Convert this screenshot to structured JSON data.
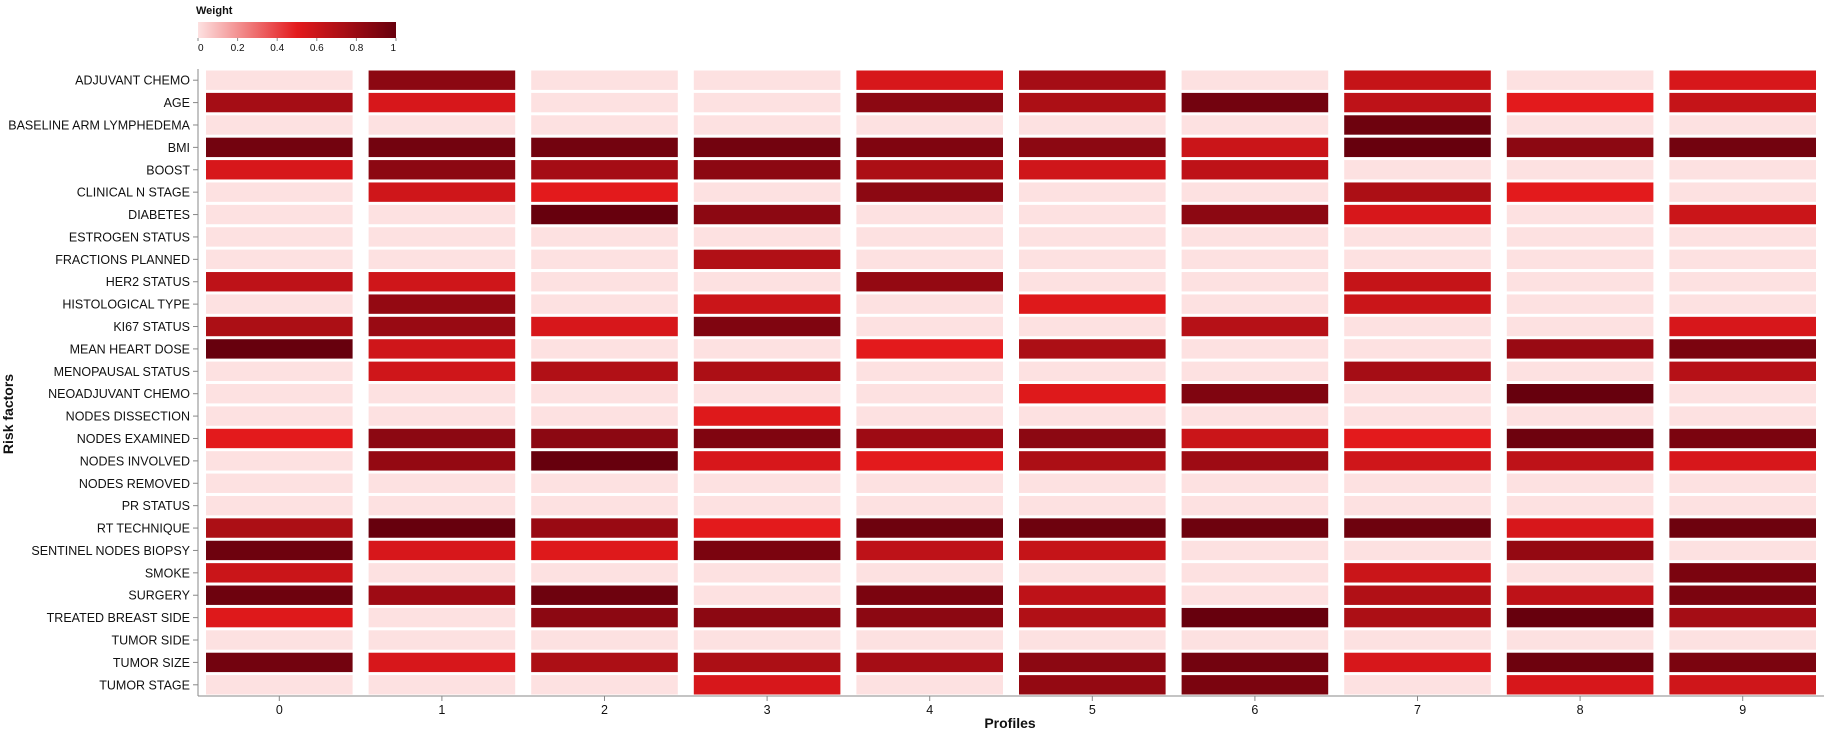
{
  "chart_data": {
    "type": "heatmap",
    "xlabel": "Profiles",
    "ylabel": "Risk factors",
    "legend": {
      "title": "Weight",
      "placement": "top-left",
      "range": [
        0,
        1
      ],
      "ticks": [
        "0",
        "0.2",
        "0.4",
        "0.6",
        "0.8",
        "1"
      ]
    },
    "colors": [
      "#fde1e1",
      "#e31a1c",
      "#67000d"
    ],
    "x": [
      "0",
      "1",
      "2",
      "3",
      "4",
      "5",
      "6",
      "7",
      "8",
      "9"
    ],
    "y": [
      "ADJUVANT CHEMO",
      "AGE",
      "BASELINE ARM LYMPHEDEMA",
      "BMI",
      "BOOST",
      "CLINICAL N STAGE",
      "DIABETES",
      "ESTROGEN STATUS",
      "FRACTIONS PLANNED",
      "HER2 STATUS",
      "HISTOLOGICAL TYPE",
      "KI67 STATUS",
      "MEAN HEART DOSE",
      "MENOPAUSAL STATUS",
      "NEOADJUVANT CHEMO",
      "NODES DISSECTION",
      "NODES EXAMINED",
      "NODES INVOLVED",
      "NODES REMOVED",
      "PR STATUS",
      "RT TECHNIQUE",
      "SENTINEL NODES BIOPSY",
      "SMOKE",
      "SURGERY",
      "TREATED BREAST SIDE",
      "TUMOR SIDE",
      "TUMOR SIZE",
      "TUMOR STAGE"
    ],
    "values": [
      [
        0,
        0.85,
        0,
        0,
        0.55,
        0.75,
        0,
        0.62,
        0,
        0.55
      ],
      [
        0.75,
        0.55,
        0,
        0,
        0.85,
        0.72,
        0.95,
        0.65,
        0.5,
        0.62
      ],
      [
        0,
        0,
        0,
        0,
        0,
        0,
        0,
        0.97,
        0,
        0
      ],
      [
        0.95,
        0.95,
        0.95,
        0.95,
        0.9,
        0.85,
        0.6,
        1.0,
        0.85,
        0.95
      ],
      [
        0.55,
        0.85,
        0.75,
        0.85,
        0.72,
        0.58,
        0.65,
        0,
        0,
        0
      ],
      [
        0,
        0.58,
        0.5,
        0,
        0.85,
        0,
        0,
        0.72,
        0.5,
        0
      ],
      [
        0,
        0,
        1.0,
        0.85,
        0,
        0,
        0.85,
        0.55,
        0,
        0.6
      ],
      [
        0,
        0,
        0,
        0,
        0,
        0,
        0,
        0,
        0,
        0
      ],
      [
        0,
        0,
        0,
        0.7,
        0,
        0,
        0,
        0,
        0,
        0
      ],
      [
        0.65,
        0.58,
        0,
        0,
        0.82,
        0,
        0,
        0.62,
        0,
        0
      ],
      [
        0,
        0.82,
        0,
        0.6,
        0,
        0.52,
        0,
        0.6,
        0,
        0
      ],
      [
        0.72,
        0.8,
        0.55,
        0.9,
        0,
        0,
        0.68,
        0,
        0,
        0.55
      ],
      [
        1.0,
        0.58,
        0,
        0,
        0.5,
        0.72,
        0,
        0,
        0.8,
        0.92
      ],
      [
        0,
        0.58,
        0.7,
        0.72,
        0,
        0,
        0,
        0.75,
        0,
        0.68
      ],
      [
        0,
        0,
        0,
        0,
        0,
        0.52,
        0.9,
        0,
        1.0,
        0
      ],
      [
        0,
        0,
        0,
        0.52,
        0,
        0,
        0,
        0,
        0,
        0
      ],
      [
        0.5,
        0.85,
        0.85,
        0.9,
        0.78,
        0.85,
        0.6,
        0.5,
        0.97,
        0.92
      ],
      [
        0,
        0.82,
        1.0,
        0.55,
        0.5,
        0.72,
        0.78,
        0.58,
        0.65,
        0.55
      ],
      [
        0,
        0,
        0,
        0,
        0,
        0,
        0,
        0,
        0,
        0
      ],
      [
        0,
        0,
        0,
        0,
        0,
        0,
        0,
        0,
        0,
        0
      ],
      [
        0.72,
        1.0,
        0.8,
        0.5,
        0.97,
        0.97,
        0.97,
        0.97,
        0.55,
        0.97
      ],
      [
        0.97,
        0.55,
        0.52,
        0.92,
        0.65,
        0.62,
        0,
        0,
        0.82,
        0
      ],
      [
        0.6,
        0,
        0,
        0,
        0,
        0,
        0,
        0.6,
        0,
        0.92
      ],
      [
        0.97,
        0.78,
        0.97,
        0,
        0.92,
        0.65,
        0,
        0.7,
        0.65,
        0.92
      ],
      [
        0.52,
        0,
        0.85,
        0.85,
        0.85,
        0.7,
        1.0,
        0.72,
        1.0,
        0.75
      ],
      [
        0,
        0,
        0,
        0,
        0,
        0,
        0,
        0,
        0,
        0
      ],
      [
        0.95,
        0.55,
        0.72,
        0.72,
        0.75,
        0.85,
        0.95,
        0.55,
        0.97,
        0.92
      ],
      [
        0,
        0,
        0,
        0.55,
        0,
        0.82,
        0.92,
        0,
        0.55,
        0.58
      ]
    ]
  }
}
